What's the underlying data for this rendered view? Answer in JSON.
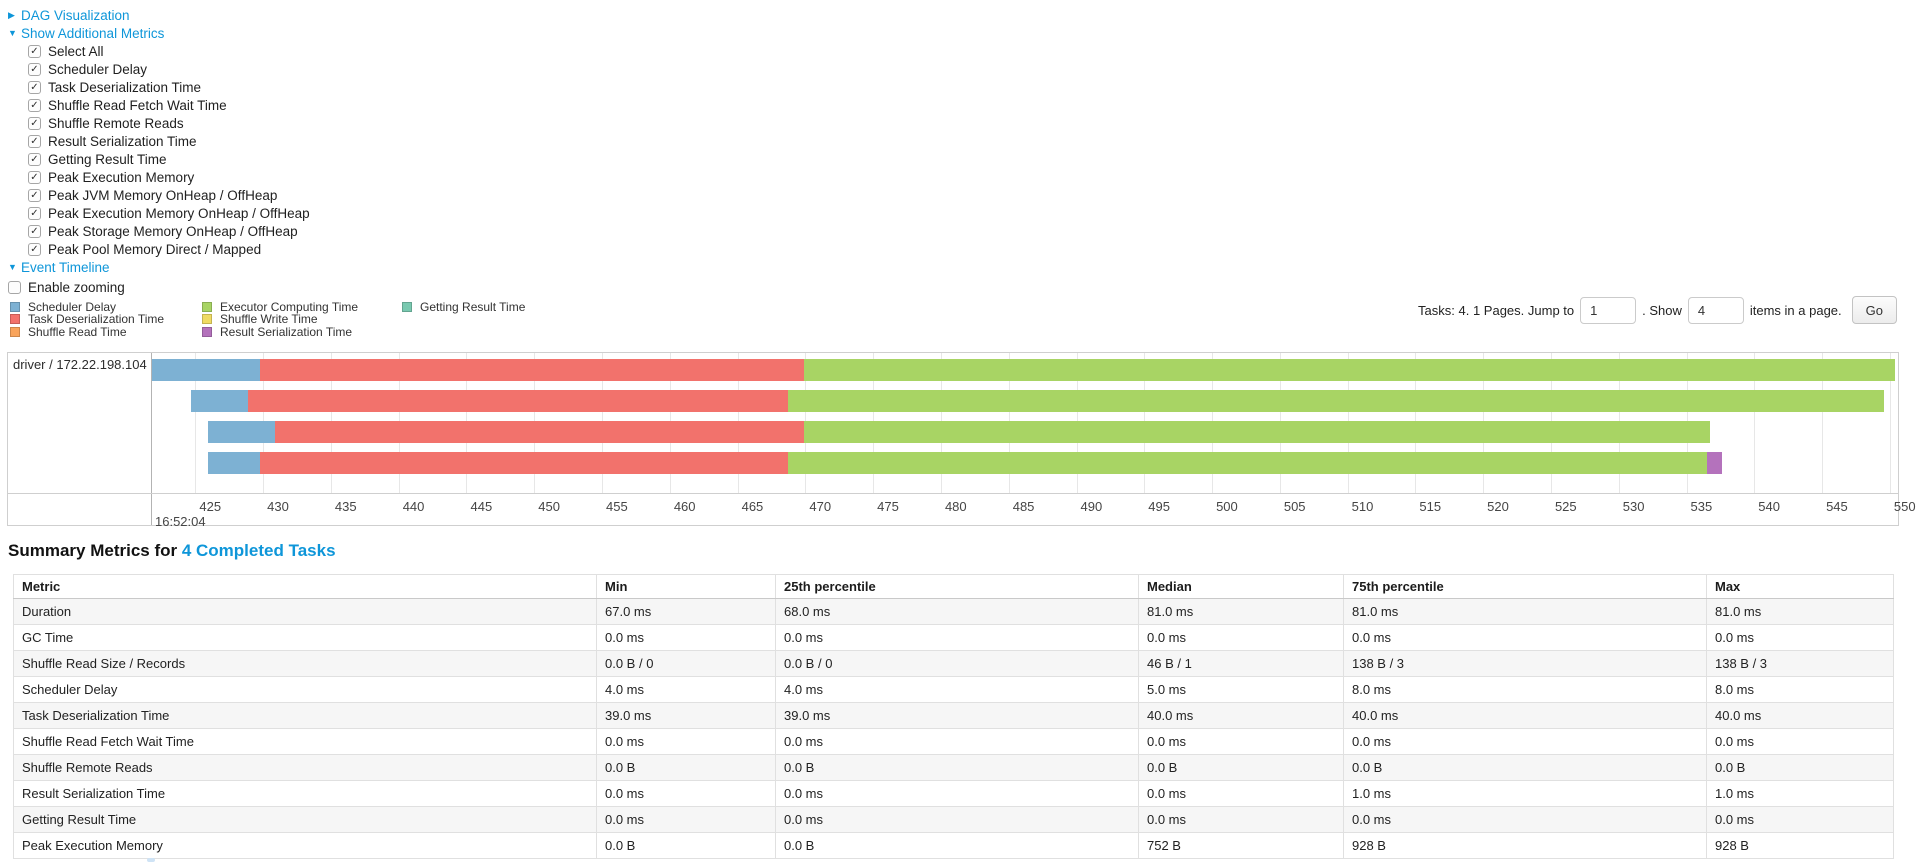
{
  "colors": {
    "link_blue": "#0e96d9",
    "scheduler_delay": "#7DB1D3",
    "task_deserialization_time": "#F2726C",
    "shuffle_read_time": "#F9A45C",
    "executor_computing_time": "#A8D464",
    "shuffle_write_time": "#EFDB63",
    "result_serialization_time": "#B472BC",
    "getting_result_time": "#79C9B0",
    "gridline": "#e7e7e7",
    "row_stripe": "#f6f6f6"
  },
  "controls": {
    "dag_label": "DAG Visualization",
    "metrics_label": "Show Additional Metrics",
    "metric_checkboxes": [
      "Select All",
      "Scheduler Delay",
      "Task Deserialization Time",
      "Shuffle Read Fetch Wait Time",
      "Shuffle Remote Reads",
      "Result Serialization Time",
      "Getting Result Time",
      "Peak Execution Memory",
      "Peak JVM Memory OnHeap / OffHeap",
      "Peak Execution Memory OnHeap / OffHeap",
      "Peak Storage Memory OnHeap / OffHeap",
      "Peak Pool Memory Direct / Mapped"
    ],
    "event_timeline_label": "Event Timeline",
    "enable_zooming_label": "Enable zooming"
  },
  "pagination": {
    "prefix": "Tasks: 4. 1 Pages. Jump to",
    "jump_value": "1",
    "mid": ". Show",
    "show_value": "4",
    "suffix": "items in a page.",
    "go_label": "Go"
  },
  "legend": {
    "columns": [
      [
        {
          "key": "scheduler_delay",
          "label": "Scheduler Delay"
        },
        {
          "key": "task_deserialization_time",
          "label": "Task Deserialization Time"
        },
        {
          "key": "shuffle_read_time",
          "label": "Shuffle Read Time"
        }
      ],
      [
        {
          "key": "executor_computing_time",
          "label": "Executor Computing Time"
        },
        {
          "key": "shuffle_write_time",
          "label": "Shuffle Write Time"
        },
        {
          "key": "result_serialization_time",
          "label": "Result Serialization Time"
        }
      ],
      [
        {
          "key": "getting_result_time",
          "label": "Getting Result Time"
        }
      ]
    ]
  },
  "chart_data": {
    "type": "timeline",
    "row_label": "driver / 172.22.198.104",
    "axis": {
      "window_start": 421.8,
      "window_end": 550.6,
      "ticks_from": 425,
      "ticks_to": 550,
      "tick_step": 5,
      "major_label": "16:52:04"
    },
    "tasks": [
      {
        "segments": [
          {
            "key": "scheduler_delay",
            "start": 421.8,
            "end": 429.8
          },
          {
            "key": "task_deserialization_time",
            "start": 429.8,
            "end": 469.9
          },
          {
            "key": "executor_computing_time",
            "start": 469.9,
            "end": 550.4
          }
        ]
      },
      {
        "segments": [
          {
            "key": "scheduler_delay",
            "start": 424.7,
            "end": 428.9
          },
          {
            "key": "task_deserialization_time",
            "start": 428.9,
            "end": 468.7
          },
          {
            "key": "executor_computing_time",
            "start": 468.7,
            "end": 549.6
          }
        ]
      },
      {
        "segments": [
          {
            "key": "scheduler_delay",
            "start": 425.9,
            "end": 430.9
          },
          {
            "key": "task_deserialization_time",
            "start": 430.9,
            "end": 469.9
          },
          {
            "key": "executor_computing_time",
            "start": 469.9,
            "end": 536.7
          }
        ]
      },
      {
        "segments": [
          {
            "key": "scheduler_delay",
            "start": 425.9,
            "end": 429.8
          },
          {
            "key": "task_deserialization_time",
            "start": 429.8,
            "end": 468.7
          },
          {
            "key": "executor_computing_time",
            "start": 468.7,
            "end": 536.5
          },
          {
            "key": "result_serialization_time",
            "start": 536.5,
            "end": 537.6
          }
        ]
      }
    ]
  },
  "summary": {
    "title_prefix": "Summary Metrics for ",
    "title_link": "4 Completed Tasks",
    "columns": [
      "Metric",
      "Min",
      "25th percentile",
      "Median",
      "75th percentile",
      "Max"
    ],
    "rows": [
      {
        "metric": "Duration",
        "values": [
          "67.0 ms",
          "68.0 ms",
          "81.0 ms",
          "81.0 ms",
          "81.0 ms"
        ]
      },
      {
        "metric": "GC Time",
        "values": [
          "0.0 ms",
          "0.0 ms",
          "0.0 ms",
          "0.0 ms",
          "0.0 ms"
        ]
      },
      {
        "metric": "Shuffle Read Size / Records",
        "values": [
          "0.0 B / 0",
          "0.0 B / 0",
          "46 B / 1",
          "138 B / 3",
          "138 B / 3"
        ]
      },
      {
        "metric": "Scheduler Delay",
        "values": [
          "4.0 ms",
          "4.0 ms",
          "5.0 ms",
          "8.0 ms",
          "8.0 ms"
        ]
      },
      {
        "metric": "Task Deserialization Time",
        "values": [
          "39.0 ms",
          "39.0 ms",
          "40.0 ms",
          "40.0 ms",
          "40.0 ms"
        ]
      },
      {
        "metric": "Shuffle Read Fetch Wait Time",
        "values": [
          "0.0 ms",
          "0.0 ms",
          "0.0 ms",
          "0.0 ms",
          "0.0 ms"
        ]
      },
      {
        "metric": "Shuffle Remote Reads",
        "values": [
          "0.0 B",
          "0.0 B",
          "0.0 B",
          "0.0 B",
          "0.0 B"
        ]
      },
      {
        "metric": "Result Serialization Time",
        "values": [
          "0.0 ms",
          "0.0 ms",
          "0.0 ms",
          "1.0 ms",
          "1.0 ms"
        ]
      },
      {
        "metric": "Getting Result Time",
        "values": [
          "0.0 ms",
          "0.0 ms",
          "0.0 ms",
          "0.0 ms",
          "0.0 ms"
        ]
      },
      {
        "metric": "Peak Execution Memory",
        "values": [
          "0.0 B",
          "0.0 B",
          "752 B",
          "928 B",
          "928 B"
        ]
      }
    ]
  }
}
